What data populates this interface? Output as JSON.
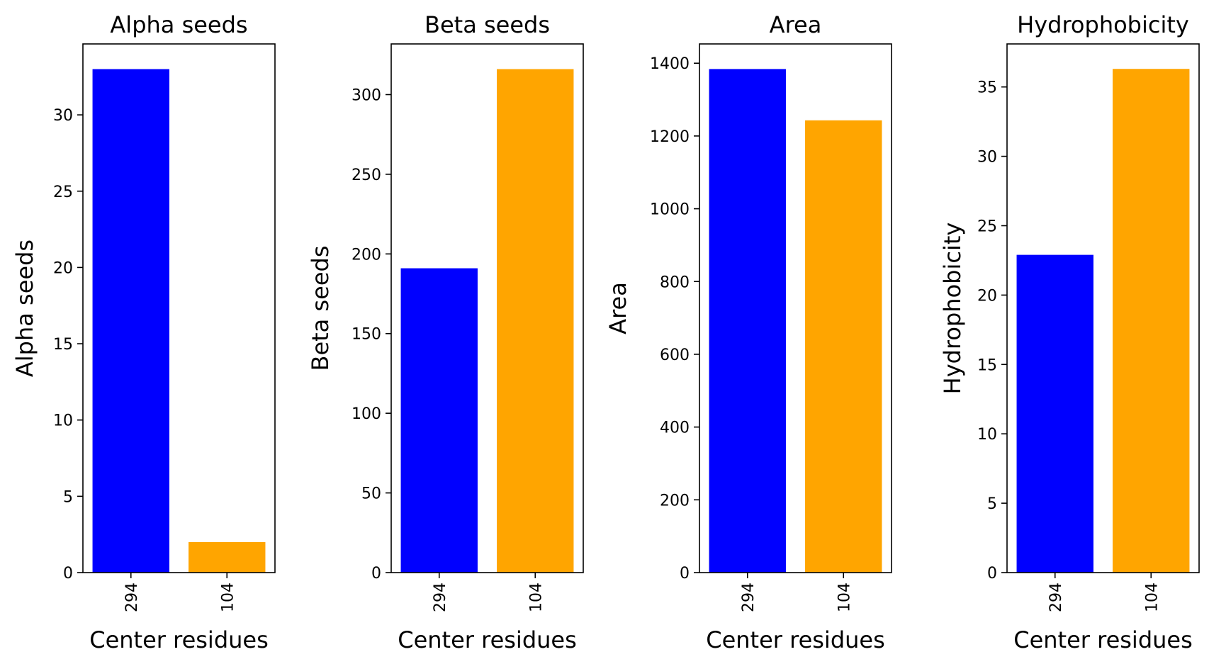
{
  "colors": {
    "primary": "#0000ff",
    "secondary": "#ffa500"
  },
  "chart_data": [
    {
      "type": "bar",
      "title": "Alpha seeds",
      "xlabel": "Center residues",
      "ylabel": "Alpha seeds",
      "categories": [
        "294",
        "104"
      ],
      "values": [
        33,
        2
      ],
      "ylim": [
        0,
        34.65
      ],
      "yticks": [
        0,
        5,
        10,
        15,
        20,
        25,
        30
      ],
      "ytick_labels": [
        "0",
        "5",
        "10",
        "15",
        "20",
        "25",
        "30"
      ],
      "grid": false,
      "legend": "none"
    },
    {
      "type": "bar",
      "title": "Beta seeds",
      "xlabel": "Center residues",
      "ylabel": "Beta seeds",
      "categories": [
        "294",
        "104"
      ],
      "values": [
        191,
        316
      ],
      "ylim": [
        0,
        331.8
      ],
      "yticks": [
        0,
        50,
        100,
        150,
        200,
        250,
        300
      ],
      "ytick_labels": [
        "0",
        "50",
        "100",
        "150",
        "200",
        "250",
        "300"
      ],
      "grid": false,
      "legend": "none"
    },
    {
      "type": "bar",
      "title": "Area",
      "xlabel": "Center residues",
      "ylabel": "Area",
      "categories": [
        "294",
        "104"
      ],
      "values": [
        1384,
        1243
      ],
      "ylim": [
        0,
        1453
      ],
      "yticks": [
        0,
        200,
        400,
        600,
        800,
        1000,
        1200,
        1400
      ],
      "ytick_labels": [
        "0",
        "200",
        "400",
        "600",
        "800",
        "1000",
        "1200",
        "1400"
      ],
      "grid": false,
      "legend": "none"
    },
    {
      "type": "bar",
      "title": "Hydrophobicity",
      "xlabel": "Center residues",
      "ylabel": "Hydrophobicity",
      "categories": [
        "294",
        "104"
      ],
      "values": [
        22.9,
        36.3
      ],
      "ylim": [
        0,
        38.1
      ],
      "yticks": [
        0,
        5,
        10,
        15,
        20,
        25,
        30,
        35
      ],
      "ytick_labels": [
        "0",
        "5",
        "10",
        "15",
        "20",
        "25",
        "30",
        "35"
      ],
      "grid": false,
      "legend": "none"
    }
  ]
}
